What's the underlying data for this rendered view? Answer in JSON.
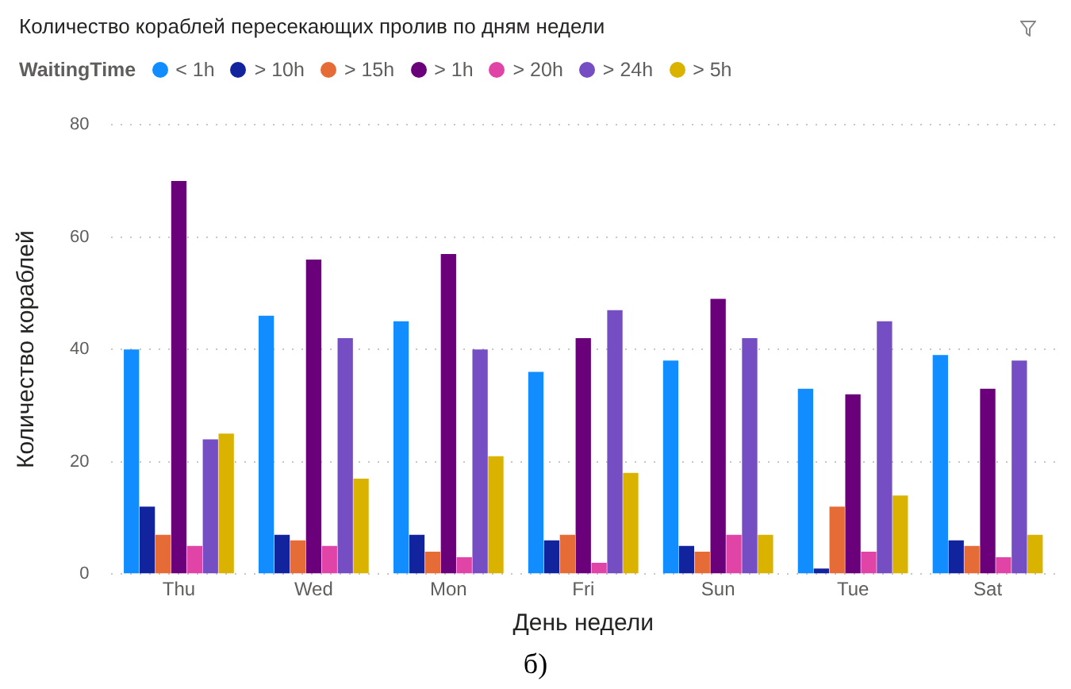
{
  "chart_data": {
    "type": "bar",
    "title": "Количество кораблей пересекающих пролив по дням недели",
    "xlabel": "День недели",
    "ylabel": "Количество кораблей",
    "legend_title": "WaitingTime",
    "legend": "top left",
    "grid": "y",
    "annotations": [
      "б)"
    ],
    "categories": [
      "Thu",
      "Wed",
      "Mon",
      "Fri",
      "Sun",
      "Tue",
      "Sat"
    ],
    "ylim": [
      0,
      80
    ],
    "yticks": [
      0,
      20,
      40,
      60,
      80
    ],
    "series": [
      {
        "name": "< 1h",
        "color": "#118dff",
        "values": [
          40,
          46,
          45,
          36,
          38,
          33,
          39
        ]
      },
      {
        "name": "> 10h",
        "color": "#12239e",
        "values": [
          12,
          7,
          7,
          6,
          5,
          1,
          6
        ]
      },
      {
        "name": "> 15h",
        "color": "#e66c37",
        "values": [
          7,
          6,
          4,
          7,
          4,
          12,
          5
        ]
      },
      {
        "name": "> 1h",
        "color": "#6b007b",
        "values": [
          70,
          56,
          57,
          42,
          49,
          32,
          33
        ]
      },
      {
        "name": "> 20h",
        "color": "#e044a7",
        "values": [
          5,
          5,
          3,
          2,
          7,
          4,
          3
        ]
      },
      {
        "name": "> 24h",
        "color": "#744ec2",
        "values": [
          24,
          42,
          40,
          47,
          42,
          45,
          38
        ]
      },
      {
        "name": "> 5h",
        "color": "#d9b300",
        "values": [
          25,
          17,
          21,
          18,
          7,
          14,
          7
        ]
      }
    ]
  }
}
